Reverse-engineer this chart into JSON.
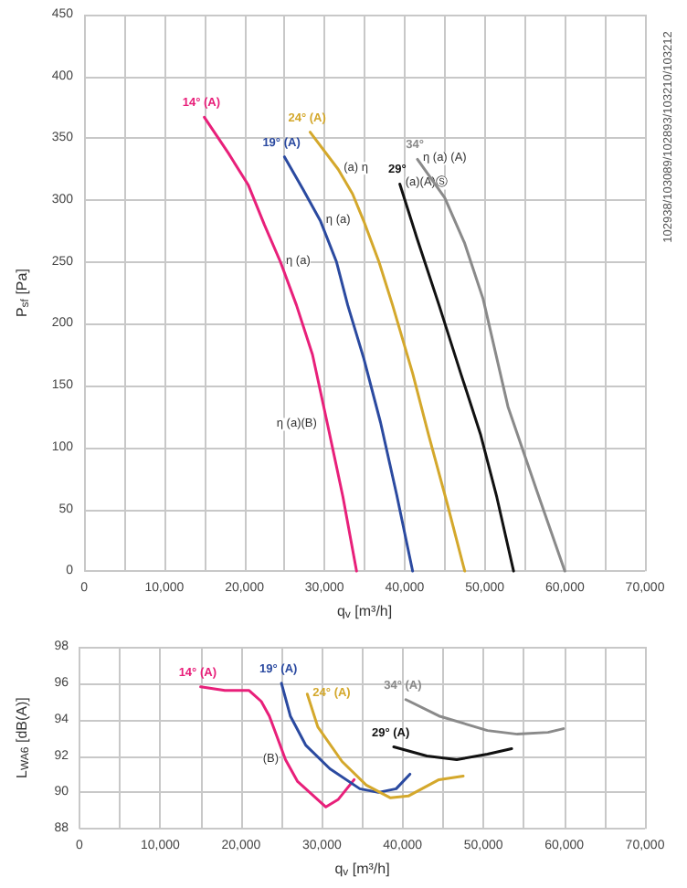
{
  "chart_data": [
    {
      "type": "line",
      "xlabel": "q$_{v}$ [m³/h]",
      "ylabel": "P$_{sf}$ [Pa]",
      "xlim": [
        0,
        70000
      ],
      "ylim": [
        0,
        450
      ],
      "xticks": [
        0,
        {
          "value": 10000,
          "label": "10,000"
        },
        {
          "value": 20000,
          "label": "20,000"
        },
        {
          "value": 30000,
          "label": "30,000"
        },
        {
          "value": 40000,
          "label": "40,000"
        },
        {
          "value": 50000,
          "label": "50,000"
        },
        {
          "value": 60000,
          "label": "60,000"
        },
        {
          "value": 70000,
          "label": "70,000"
        }
      ],
      "yticks": [
        0,
        50,
        100,
        150,
        200,
        250,
        300,
        350,
        400,
        450
      ],
      "grid": true,
      "legend": false,
      "marker": "none",
      "line_style": "solid",
      "series": [
        {
          "name": "14° (A)",
          "color": "#e8207a",
          "x": [
            15000,
            18000,
            20500,
            22500,
            24500,
            26500,
            28500,
            30400,
            32300,
            34000
          ],
          "values": [
            367,
            338,
            312,
            280,
            250,
            215,
            175,
            118,
            60,
            0
          ]
        },
        {
          "name": "19° (A)",
          "color": "#2b4aa0",
          "x": [
            25000,
            27300,
            29500,
            31500,
            32900,
            34900,
            37000,
            39000,
            41000
          ],
          "values": [
            335,
            309,
            283,
            250,
            215,
            172,
            120,
            62,
            0
          ]
        },
        {
          "name": "24° (A)",
          "color": "#d4a82c",
          "x": [
            28200,
            31700,
            33500,
            34900,
            36800,
            38500,
            41000,
            43000,
            45300,
            47500
          ],
          "values": [
            355,
            325,
            305,
            283,
            250,
            215,
            160,
            110,
            55,
            0
          ]
        },
        {
          "name": "29°",
          "color": "#111111",
          "x": [
            39400,
            41500,
            44300,
            47000,
            49500,
            51500,
            53600
          ],
          "values": [
            313,
            270,
            215,
            160,
            110,
            60,
            0
          ]
        },
        {
          "name": "34°",
          "color": "#8a8a8a",
          "x": [
            41600,
            45000,
            47500,
            49800,
            52900,
            56500,
            60000
          ],
          "values": [
            333,
            302,
            265,
            220,
            133,
            65,
            0
          ]
        }
      ],
      "annotations": [
        {
          "text": "η (a)",
          "x": 24500,
          "y": 250
        },
        {
          "text": "η (a)",
          "x": 29500,
          "y": 283
        },
        {
          "text": "(a) η",
          "x": 31700,
          "y": 325
        },
        {
          "text": "(a)(A)Ⓢ",
          "x": 39400,
          "y": 313
        },
        {
          "text": "η (a) (A)",
          "x": 41600,
          "y": 333
        },
        {
          "text": "η (a)(B)",
          "x": 30400,
          "y": 118
        },
        "102938/103089/102893/103210/103212"
      ]
    },
    {
      "type": "line",
      "xlabel": "q$_{v}$ [m³/h]",
      "ylabel": "L$_{WA6}$ [dB(A)]",
      "xlim": [
        0,
        70000
      ],
      "ylim": [
        88,
        98
      ],
      "xticks": [
        0,
        {
          "value": 10000,
          "label": "10,000"
        },
        {
          "value": 20000,
          "label": "20,000"
        },
        {
          "value": 30000,
          "label": "30,000"
        },
        {
          "value": 40000,
          "label": "40,000"
        },
        {
          "value": 50000,
          "label": "50,000"
        },
        {
          "value": 60000,
          "label": "60,000"
        },
        {
          "value": 70000,
          "label": "70,000"
        }
      ],
      "yticks": [
        88,
        90,
        92,
        94,
        96,
        98
      ],
      "grid": true,
      "legend": false,
      "marker": "none",
      "line_style": "solid",
      "series": [
        {
          "name": "14° (A)",
          "color": "#e8207a",
          "x": [
            15000,
            18000,
            21000,
            22500,
            23500,
            24500,
            25500,
            27000,
            29000,
            30500,
            32000,
            34000
          ],
          "values": [
            95.8,
            95.6,
            95.6,
            95.0,
            94.2,
            93.0,
            91.8,
            90.6,
            89.8,
            89.2,
            89.6,
            90.7
          ]
        },
        {
          "name": "19° (A)",
          "color": "#2b4aa0",
          "x": [
            25000,
            26100,
            28000,
            31000,
            34700,
            37000,
            39200,
            40900
          ],
          "values": [
            96.0,
            94.2,
            92.6,
            91.3,
            90.2,
            90.0,
            90.2,
            91.0
          ]
        },
        {
          "name": "24° (A)",
          "color": "#d4a82c",
          "x": [
            28200,
            29500,
            32500,
            35500,
            38500,
            40700,
            44500,
            47500
          ],
          "values": [
            95.4,
            93.6,
            91.7,
            90.4,
            89.7,
            89.8,
            90.7,
            90.9
          ]
        },
        {
          "name": "29° (A)",
          "color": "#111111",
          "x": [
            38900,
            43000,
            46700,
            50500,
            53500
          ],
          "values": [
            92.5,
            92.0,
            91.8,
            92.1,
            92.4
          ]
        },
        {
          "name": "34° (A)",
          "color": "#8a8a8a",
          "x": [
            40400,
            44500,
            50500,
            54200,
            58000,
            59900
          ],
          "values": [
            95.1,
            94.2,
            93.4,
            93.2,
            93.3,
            93.5
          ]
        }
      ],
      "annotations": [
        {
          "text": "(B)",
          "x": 25500,
          "y": 91.8
        }
      ]
    }
  ]
}
